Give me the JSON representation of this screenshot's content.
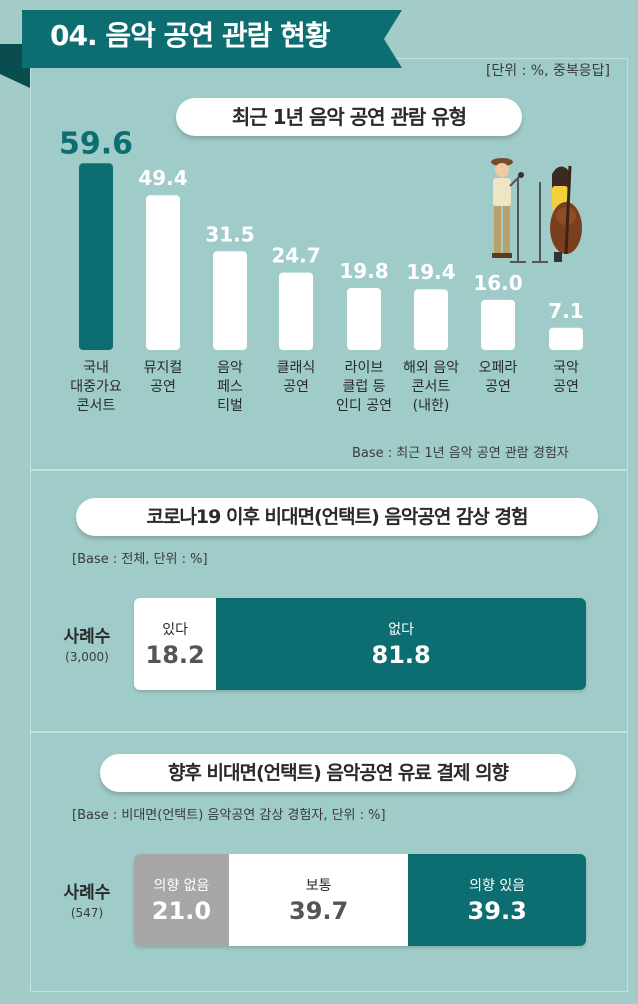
{
  "header": {
    "title": "04. 음악 공연 관람 현황",
    "unit": "[단위 : %, 중복응답]"
  },
  "colors": {
    "teal": "#0d6e72",
    "white": "#ffffff",
    "gray": "#a7a7a7",
    "bg": "#a3ccc9"
  },
  "section1": {
    "title": "최근 1년 음악 공연 관람 유형",
    "base": "Base : 최근 1년 음악 공연 관람 경험자",
    "illustration": "musicians-illustration"
  },
  "section2": {
    "title": "코로나19 이후 비대면(언택트) 음악공연 감상 경험",
    "base": "[Base : 전체, 단위 : %]",
    "cases_label": "사례수",
    "cases_n": "(3,000)"
  },
  "section3": {
    "title": "향후 비대면(언택트) 음악공연 유료 결제 의향",
    "base": "[Base : 비대면(언택트) 음악공연 감상 경험자, 단위 : %]",
    "cases_label": "사례수",
    "cases_n": "(547)"
  },
  "chart_data": [
    {
      "type": "bar",
      "title": "최근 1년 음악 공연 관람 유형",
      "categories": [
        "국내 대중가요 콘서트",
        "뮤지컬 공연",
        "음악 페스티벌",
        "클래식 공연",
        "라이브 클럽 등 인디 공연",
        "해외 음악 콘서트 (내한)",
        "오페라 공연",
        "국악 공연"
      ],
      "category_lines": [
        [
          "국내",
          "대중가요",
          "콘서트"
        ],
        [
          "뮤지컬",
          "공연"
        ],
        [
          "음악",
          "페스",
          "티벌"
        ],
        [
          "클래식",
          "공연"
        ],
        [
          "라이브",
          "클럽 등",
          "인디 공연"
        ],
        [
          "해외 음악",
          "콘서트",
          "(내한)"
        ],
        [
          "오페라",
          "공연"
        ],
        [
          "국악",
          "공연"
        ]
      ],
      "values": [
        59.6,
        49.4,
        31.5,
        24.7,
        19.8,
        19.4,
        16.0,
        7.1
      ],
      "value_labels": [
        "59.6",
        "49.4",
        "31.5",
        "24.7",
        "19.8",
        "19.4",
        "16.0",
        "7.1"
      ],
      "highlight_index": 0,
      "ylim": [
        0,
        60
      ]
    },
    {
      "type": "bar",
      "title": "코로나19 이후 비대면(언택트) 음악공연 감상 경험",
      "segments": [
        {
          "label": "있다",
          "value": 18.2,
          "display": "18.2"
        },
        {
          "label": "없다",
          "value": 81.8,
          "display": "81.8"
        }
      ]
    },
    {
      "type": "bar",
      "title": "향후 비대면(언택트) 음악공연 유료 결제 의향",
      "segments": [
        {
          "label": "의향 없음",
          "value": 21.0,
          "display": "21.0"
        },
        {
          "label": "보통",
          "value": 39.7,
          "display": "39.7"
        },
        {
          "label": "의향 있음",
          "value": 39.3,
          "display": "39.3"
        }
      ]
    }
  ]
}
